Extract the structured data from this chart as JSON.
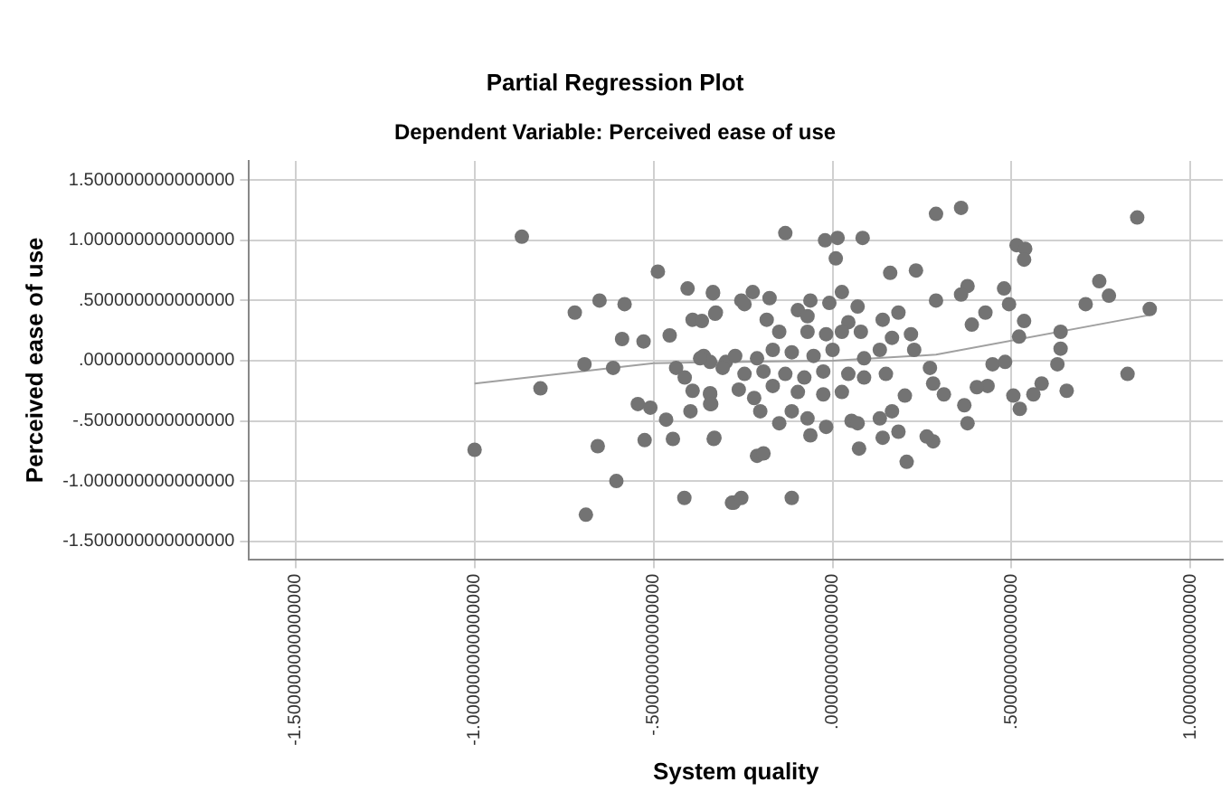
{
  "chart_data": {
    "type": "scatter",
    "title": "Partial Regression Plot",
    "subtitle": "Dependent Variable: Perceived ease of use",
    "xlabel": "System quality",
    "ylabel": "Perceived ease of use",
    "xlim": [
      -1.63,
      1.09
    ],
    "ylim": [
      -1.65,
      1.66
    ],
    "xticks": [
      {
        "value": -1.5,
        "label": "-1.500000000000000"
      },
      {
        "value": -1.0,
        "label": "-1.000000000000000"
      },
      {
        "value": -0.5,
        "label": "-.500000000000000"
      },
      {
        "value": 0,
        "label": ".000000000000000"
      },
      {
        "value": 0.5,
        "label": ".500000000000000"
      },
      {
        "value": 1.0,
        "label": "1.000000000000000"
      }
    ],
    "yticks": [
      {
        "value": -1.5,
        "label": "-1.500000000000000"
      },
      {
        "value": -1.0,
        "label": "-1.000000000000000"
      },
      {
        "value": -0.5,
        "label": "-.500000000000000"
      },
      {
        "value": 0,
        "label": ".000000000000000"
      },
      {
        "value": 0.5,
        "label": ".500000000000000"
      },
      {
        "value": 1.0,
        "label": "1.000000000000000"
      },
      {
        "value": 1.5,
        "label": "1.500000000000000"
      }
    ],
    "grid": true,
    "legend": false,
    "marker": "circle",
    "series": [
      {
        "type": "scatter",
        "color": "#737373",
        "x": [
          -0.868,
          -0.488,
          -0.405,
          -0.334,
          -0.651,
          -0.581,
          -0.72,
          -0.326,
          -0.391,
          -0.365,
          -0.588,
          -0.528,
          -0.455,
          -0.693,
          -0.613,
          -0.816,
          -0.437,
          -0.413,
          -0.36,
          -0.391,
          -0.342,
          -0.339,
          -0.544,
          -0.509,
          -0.465,
          -0.397,
          -0.525,
          -0.446,
          -0.332,
          -0.656,
          -1.0,
          -0.604,
          -0.414,
          -0.281,
          -0.689,
          -0.298,
          0.359,
          0.289,
          -0.132,
          -0.021,
          0.014,
          0.084,
          0.851,
          0.514,
          0.538,
          0.535,
          0.009,
          0.161,
          0.233,
          0.377,
          0.359,
          0.479,
          0.745,
          0.772,
          0.707,
          0.886,
          0.493,
          0.427,
          0.289,
          0.389,
          0.637,
          0.535,
          0.637,
          0.521,
          0.628,
          0.824,
          0.654,
          0.584,
          0.561,
          0.523,
          0.505,
          0.447,
          0.482,
          0.433,
          0.403,
          0.311,
          0.368,
          0.377,
          0.281,
          0.263,
          0.207,
          0.184,
          0.14,
          0.074,
          0.132,
          0.053,
          0.166,
          0.202,
          0.281,
          0.272,
          0.228,
          0.219,
          0.166,
          0.132,
          0.088,
          0.14,
          0.184,
          0.07,
          0.044,
          0.026,
          -0.009,
          -0.062,
          -0.097,
          -0.176,
          -0.223,
          -0.255,
          -0.334,
          -0.328,
          -0.184,
          -0.149,
          -0.07,
          -0.018,
          0.026,
          0,
          -0.053,
          -0.114,
          -0.167,
          -0.211,
          -0.272,
          -0.342,
          -0.37,
          -0.307,
          -0.246,
          -0.193,
          -0.132,
          -0.079,
          -0.026,
          0.044,
          0.088,
          0.149,
          0.026,
          -0.026,
          -0.097,
          -0.167,
          -0.219,
          -0.262,
          -0.342,
          -0.342,
          -0.202,
          -0.149,
          -0.07,
          -0.062,
          -0.018,
          0.07,
          -0.114,
          -0.33,
          -0.211,
          -0.193,
          -0.276,
          -0.255,
          -0.114,
          -0.246,
          -0.07,
          0.079
        ],
        "values": [
          1.03,
          0.74,
          0.6,
          0.57,
          0.5,
          0.47,
          0.4,
          0.4,
          0.34,
          0.33,
          0.18,
          0.16,
          0.21,
          -0.03,
          -0.06,
          -0.23,
          -0.06,
          -0.14,
          0.04,
          -0.25,
          -0.27,
          -0.36,
          -0.36,
          -0.39,
          -0.49,
          -0.42,
          -0.66,
          -0.65,
          -0.65,
          -0.71,
          -0.74,
          -1.0,
          -1.14,
          -1.18,
          -1.28,
          -0.01,
          1.27,
          1.22,
          1.06,
          1.0,
          1.02,
          1.02,
          1.19,
          0.96,
          0.93,
          0.84,
          0.85,
          0.73,
          0.75,
          0.62,
          0.55,
          0.6,
          0.66,
          0.54,
          0.47,
          0.43,
          0.47,
          0.4,
          0.5,
          0.3,
          0.24,
          0.33,
          0.1,
          0.2,
          -0.03,
          -0.11,
          -0.25,
          -0.19,
          -0.28,
          -0.4,
          -0.29,
          -0.03,
          -0.01,
          -0.21,
          -0.22,
          -0.28,
          -0.37,
          -0.52,
          -0.67,
          -0.63,
          -0.84,
          -0.59,
          -0.64,
          -0.73,
          -0.48,
          -0.5,
          -0.42,
          -0.29,
          -0.19,
          -0.06,
          0.09,
          0.22,
          0.19,
          0.09,
          0.02,
          0.34,
          0.4,
          0.45,
          0.32,
          0.57,
          0.48,
          0.5,
          0.42,
          0.52,
          0.57,
          0.5,
          0.56,
          0.39,
          0.34,
          0.24,
          0.24,
          0.22,
          0.24,
          0.09,
          0.04,
          0.07,
          0.09,
          0.02,
          0.04,
          -0.01,
          0.02,
          -0.06,
          -0.11,
          -0.09,
          -0.11,
          -0.14,
          -0.09,
          -0.11,
          -0.14,
          -0.11,
          -0.26,
          -0.28,
          -0.26,
          -0.21,
          -0.31,
          -0.24,
          -0.28,
          -0.36,
          -0.42,
          -0.52,
          -0.48,
          -0.62,
          -0.55,
          -0.52,
          -0.42,
          -0.64,
          -0.79,
          -0.77,
          -1.18,
          -1.14,
          -1.14,
          0.47,
          0.37,
          0.24
        ]
      },
      {
        "type": "line",
        "color": "#a0a0a0",
        "marker": "none",
        "x": [
          -1.0,
          -0.5,
          0,
          0.289,
          0.886
        ],
        "values": [
          -0.19,
          -0.02,
          0.0,
          0.05,
          0.38
        ]
      }
    ]
  }
}
